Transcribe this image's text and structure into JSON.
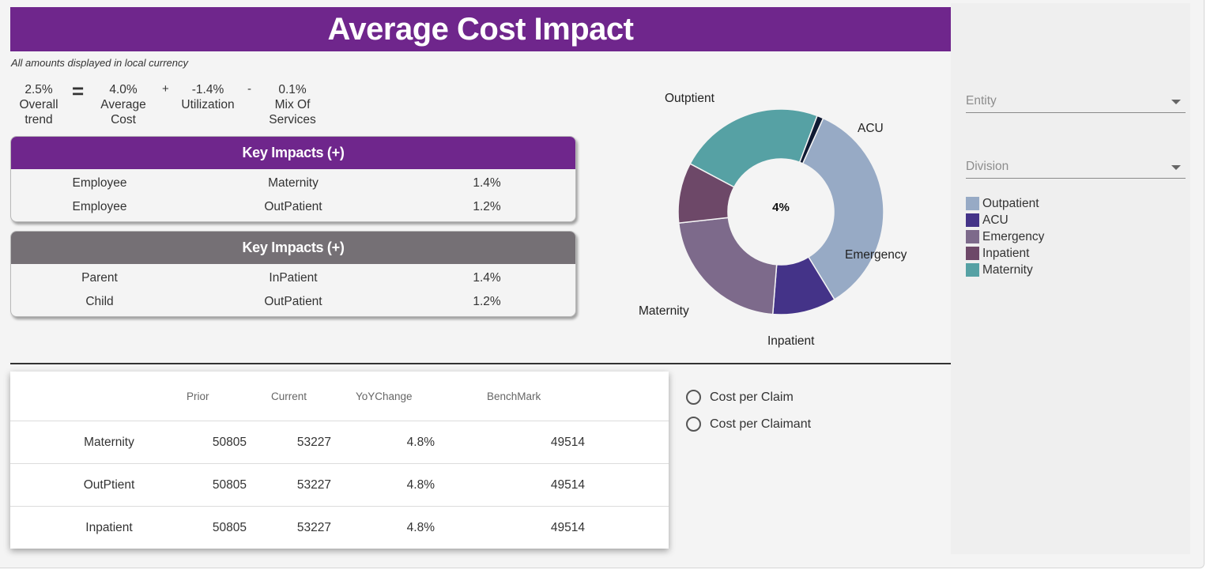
{
  "header": {
    "title": "Average Cost Impact",
    "note": "All amounts displayed in local currency"
  },
  "formula": {
    "overall": {
      "value": "2.5%",
      "line1": "Overall",
      "line2": "trend"
    },
    "op_equals": "=",
    "average_cost": {
      "value": "4.0%",
      "line1": "Average",
      "line2": "Cost"
    },
    "op_plus": "+",
    "utilization": {
      "value": "-1.4%",
      "line1": "Utilization"
    },
    "op_minus": "-",
    "mix": {
      "value": "0.1%",
      "line1": "Mix Of",
      "line2": "Services"
    }
  },
  "impacts_positive": {
    "title": "Key Impacts (+)",
    "header_color": "#6f268c",
    "rows": [
      {
        "group": "Employee",
        "service": "Maternity",
        "value": "1.4%"
      },
      {
        "group": "Employee",
        "service": "OutPatient",
        "value": "1.2%"
      }
    ]
  },
  "impacts_second": {
    "title": "Key Impacts (+)",
    "header_color": "#757075",
    "rows": [
      {
        "group": "Parent",
        "service": "InPatient",
        "value": "1.4%"
      },
      {
        "group": "Child",
        "service": "OutPatient",
        "value": "1.2%"
      }
    ]
  },
  "chart_data": {
    "type": "pie",
    "center_label": "4%",
    "slice_labels": [
      "Outptient",
      "ACU",
      "Emergency",
      "Inpatient",
      "Maternity"
    ],
    "slices": [
      {
        "name": "Outpatient",
        "value": 34.5,
        "color": "#97aac5"
      },
      {
        "name": "ACU",
        "value": 10.0,
        "color": "#443388"
      },
      {
        "name": "Emergency",
        "value": 22.0,
        "color": "#7d6a8b"
      },
      {
        "name": "Inpatient",
        "value": 9.5,
        "color": "#6d4868"
      },
      {
        "name": "Maternity",
        "value": 23.0,
        "color": "#56a1a4"
      },
      {
        "name": "",
        "value": 1.0,
        "color": "#0f1a33"
      }
    ],
    "legend": [
      "Outpatient",
      "ACU",
      "Emergency",
      "Inpatient",
      "Maternity"
    ],
    "legend_position": "right"
  },
  "table": {
    "headers": [
      "",
      "Prior",
      "Current",
      "YoYChange",
      "BenchMark"
    ],
    "rows": [
      {
        "name": "Maternity",
        "prior": "50805",
        "current": "53227",
        "yoy": "4.8%",
        "benchmark": "49514"
      },
      {
        "name": "OutPtient",
        "prior": "50805",
        "current": "53227",
        "yoy": "4.8%",
        "benchmark": "49514"
      },
      {
        "name": "Inpatient",
        "prior": "50805",
        "current": "53227",
        "yoy": "4.8%",
        "benchmark": "49514"
      }
    ]
  },
  "radios": [
    {
      "label": "Cost per Claim",
      "selected": false
    },
    {
      "label": "Cost per Claimant",
      "selected": false
    }
  ],
  "filters": {
    "entity_placeholder": "Entity",
    "division_placeholder": "Division"
  }
}
